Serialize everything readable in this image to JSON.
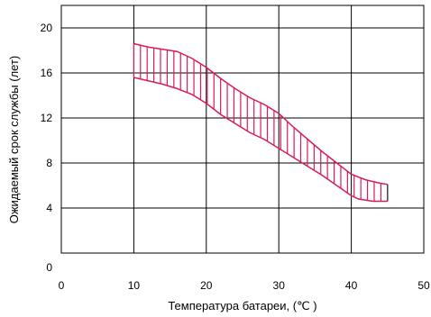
{
  "chart_data": {
    "type": "area",
    "title": "",
    "xlabel": "Температура батареи, (℃ )",
    "ylabel": "Ожидаемый срок службы (лет)",
    "xlim": [
      0,
      50
    ],
    "ylim": [
      0,
      22
    ],
    "x_ticks": [
      0,
      10,
      20,
      30,
      40,
      50
    ],
    "y_ticks": [
      0,
      4,
      8,
      12,
      16,
      20
    ],
    "grid": true,
    "legend": "none",
    "colors": {
      "band": "#d81b60",
      "grid": "#000000",
      "text": "#000000"
    },
    "series": [
      {
        "role": "upper",
        "x": [
          10,
          12,
          14,
          16,
          18,
          20,
          22,
          24,
          26,
          28,
          30,
          32,
          34,
          36,
          38,
          40,
          42,
          44,
          45
        ],
        "values": [
          18.6,
          18.3,
          18.1,
          17.9,
          17.3,
          16.5,
          15.5,
          14.6,
          13.8,
          13.2,
          12.4,
          11.2,
          10.1,
          9.0,
          8.0,
          7.0,
          6.5,
          6.2,
          6.1
        ]
      },
      {
        "role": "lower",
        "x": [
          10,
          12,
          14,
          16,
          18,
          20,
          22,
          24,
          26,
          28,
          30,
          32,
          34,
          36,
          38,
          40,
          41,
          42,
          43,
          44,
          45
        ],
        "values": [
          15.6,
          15.3,
          15.0,
          14.6,
          14.1,
          13.3,
          12.3,
          11.5,
          10.7,
          10.1,
          9.3,
          8.5,
          7.7,
          6.9,
          6.0,
          5.1,
          4.8,
          4.7,
          4.6,
          4.6,
          4.6
        ]
      }
    ]
  }
}
